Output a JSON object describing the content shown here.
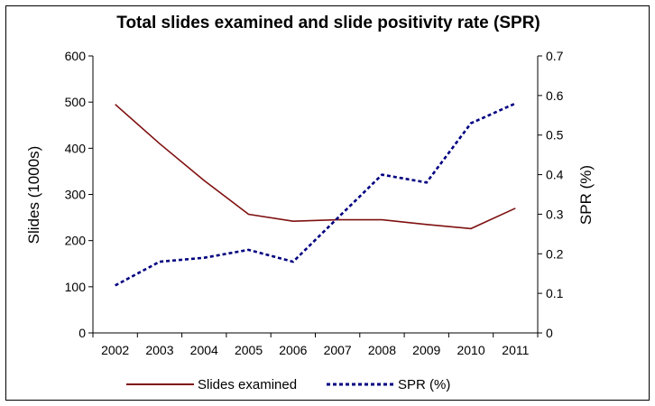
{
  "chart_data": {
    "type": "line",
    "title": "Total slides examined and slide positivity rate (SPR)",
    "categories": [
      "2002",
      "2003",
      "2004",
      "2005",
      "2006",
      "2007",
      "2008",
      "2009",
      "2010",
      "2011"
    ],
    "series": [
      {
        "name": "Slides examined",
        "axis": "left",
        "color": "#7f1010",
        "style": "solid",
        "values": [
          495,
          410,
          330,
          257,
          242,
          245,
          245,
          235,
          226,
          270
        ]
      },
      {
        "name": "SPR (%)",
        "axis": "right",
        "color": "#000080",
        "style": "dashed",
        "values": [
          0.12,
          0.18,
          0.19,
          0.21,
          0.18,
          0.29,
          0.4,
          0.38,
          0.53,
          0.58
        ]
      }
    ],
    "y_left": {
      "label": "Slides (1000s)",
      "lim": [
        0,
        600
      ],
      "ticks": [
        "0",
        "100",
        "200",
        "300",
        "400",
        "500",
        "600"
      ]
    },
    "y_right": {
      "label": "SPR (%)",
      "lim": [
        0,
        0.7
      ],
      "ticks": [
        "0",
        "0.1",
        "0.2",
        "0.3",
        "0.4",
        "0.5",
        "0.6",
        "0.7"
      ]
    },
    "grid": false,
    "legend_position": "bottom"
  }
}
